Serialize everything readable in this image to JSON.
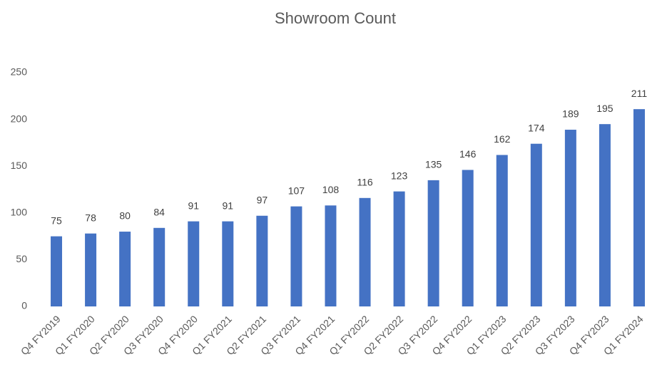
{
  "chart_data": {
    "type": "bar",
    "title": "Showroom Count",
    "categories": [
      "Q4 FY2019",
      "Q1 FY2020",
      "Q2 FY2020",
      "Q3 FY2020",
      "Q4 FY2020",
      "Q1 FY2021",
      "Q2 FY2021",
      "Q3 FY2021",
      "Q4 FY2021",
      "Q1 FY2022",
      "Q2 FY2022",
      "Q3 FY2022",
      "Q4 FY2022",
      "Q1 FY2023",
      "Q2 FY2023",
      "Q3 FY2023",
      "Q4 FY2023",
      "Q1 FY2024"
    ],
    "values": [
      75,
      78,
      80,
      84,
      91,
      91,
      97,
      107,
      108,
      116,
      123,
      135,
      146,
      162,
      174,
      189,
      195,
      211
    ],
    "color": "#4472c4",
    "ylim": [
      0,
      250
    ],
    "yticks": [
      0,
      50,
      100,
      150,
      200,
      250
    ],
    "grid": false
  }
}
